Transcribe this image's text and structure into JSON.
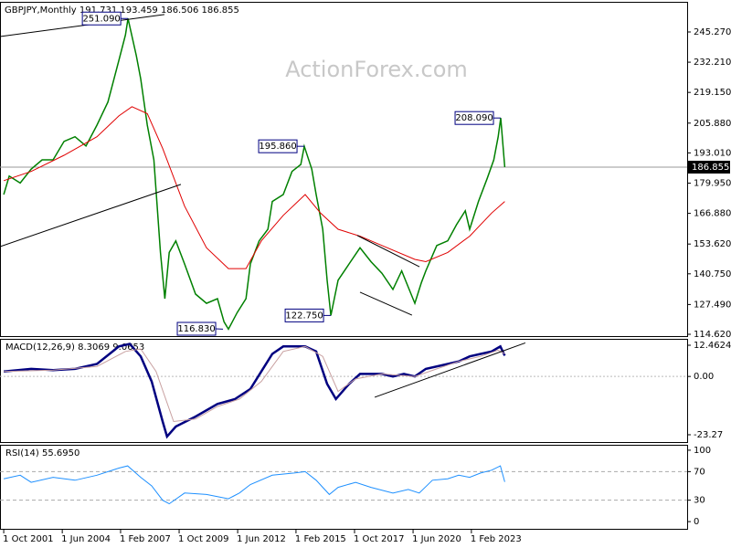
{
  "chart_data": [
    {
      "type": "line",
      "title": "GBPJPY,Monthly  191.731 193.459 186.506 186.855",
      "watermark": "ActionForex.com",
      "xlim": [
        2001.58,
        2032.92
      ],
      "xticks": [
        {
          "value": 2001.75,
          "label": "1 Oct 2001"
        },
        {
          "value": 2004.42,
          "label": "1 Jun 2004"
        },
        {
          "value": 2007.08,
          "label": "1 Feb 2007"
        },
        {
          "value": 2009.75,
          "label": "1 Oct 2009"
        },
        {
          "value": 2012.42,
          "label": "1 Jun 2012"
        },
        {
          "value": 2015.08,
          "label": "1 Feb 2015"
        },
        {
          "value": 2017.75,
          "label": "1 Oct 2017"
        },
        {
          "value": 2020.42,
          "label": "1 Jun 2020"
        },
        {
          "value": 2023.08,
          "label": "1 Feb 2023"
        }
      ],
      "ylim": [
        113.83,
        257.9
      ],
      "yticks": [
        {
          "value": 245.27,
          "label": "245.270"
        },
        {
          "value": 232.21,
          "label": "232.210"
        },
        {
          "value": 219.15,
          "label": "219.150"
        },
        {
          "value": 205.88,
          "label": "205.880"
        },
        {
          "value": 193.01,
          "label": "193.010"
        },
        {
          "value": 179.95,
          "label": "179.950"
        },
        {
          "value": 166.88,
          "label": "166.880"
        },
        {
          "value": 153.62,
          "label": "153.620"
        },
        {
          "value": 140.75,
          "label": "140.750"
        },
        {
          "value": 127.49,
          "label": "127.490"
        },
        {
          "value": 114.62,
          "label": "114.620"
        }
      ],
      "series": [
        {
          "color": "#008000",
          "width": 1.5,
          "x": [
            2001.75,
            2002.0,
            2002.5,
            2003.0,
            2003.5,
            2004.0,
            2004.5,
            2005.0,
            2005.5,
            2006.0,
            2006.5,
            2007.0,
            2007.3,
            2007.42,
            2007.8,
            2008.0,
            2008.3,
            2008.6,
            2008.9,
            2009.1,
            2009.3,
            2009.6,
            2010.0,
            2010.5,
            2011.0,
            2011.5,
            2011.8,
            2012.0,
            2012.4,
            2012.8,
            2013.0,
            2013.4,
            2013.8,
            2014.0,
            2014.5,
            2014.9,
            2015.3,
            2015.46,
            2015.8,
            2016.0,
            2016.3,
            2016.5,
            2016.67,
            2017.0,
            2017.5,
            2018.0,
            2018.5,
            2019.0,
            2019.5,
            2019.9,
            2020.2,
            2020.5,
            2020.8,
            2021.0,
            2021.5,
            2022.0,
            2022.4,
            2022.8,
            2023.0,
            2023.4,
            2023.8,
            2024.1,
            2024.3,
            2024.42,
            2024.6
          ],
          "values": [
            175,
            183,
            180,
            186,
            190,
            190,
            198,
            200,
            196,
            205,
            215,
            233,
            244,
            251.09,
            235,
            225,
            205,
            190,
            150,
            130,
            150,
            155,
            145,
            132,
            128,
            130,
            120,
            116.83,
            124,
            130,
            145,
            155,
            160,
            172,
            175,
            185,
            188,
            195.86,
            186,
            175,
            160,
            138,
            122.75,
            138,
            145,
            152,
            146,
            141,
            134,
            142,
            135,
            128,
            137,
            142,
            153,
            155,
            162,
            168,
            160,
            172,
            182,
            190,
            200,
            208.09,
            186.855
          ]
        },
        {
          "color": "#e00000",
          "width": 1,
          "x": [
            2001.75,
            2003.0,
            2004.5,
            2006.0,
            2007.0,
            2007.6,
            2008.3,
            2009.0,
            2010.0,
            2011.0,
            2012.0,
            2012.8,
            2013.5,
            2014.5,
            2015.5,
            2016.2,
            2017.0,
            2018.0,
            2019.0,
            2020.5,
            2021.0,
            2022.0,
            2023.0,
            2024.0,
            2024.6
          ],
          "values": [
            181,
            185,
            192,
            200,
            209,
            213,
            210,
            195,
            170,
            152,
            143,
            143,
            155,
            166,
            175,
            167,
            160,
            157,
            153,
            147,
            146,
            150,
            157,
            167,
            172
          ]
        }
      ],
      "trendlines": [
        {
          "x": [
            2001.58,
            2009.08
          ],
          "y": [
            243.3,
            252.8
          ]
        },
        {
          "x": [
            2001.58,
            2009.83
          ],
          "y": [
            152.5,
            179.4
          ]
        },
        {
          "x": [
            2017.88,
            2020.71
          ],
          "y": [
            157.3,
            143.8
          ]
        },
        {
          "x": [
            2018.0,
            2020.37
          ],
          "y": [
            132.8,
            122.9
          ]
        }
      ],
      "annotations": [
        {
          "x": 2007.42,
          "value": 251.09,
          "label": "251.090"
        },
        {
          "x": 2011.75,
          "value": 116.83,
          "label": "116.830"
        },
        {
          "x": 2015.46,
          "value": 195.86,
          "label": "195.860"
        },
        {
          "x": 2016.67,
          "value": 122.75,
          "label": "122.750"
        },
        {
          "x": 2024.42,
          "value": 208.09,
          "label": "208.090"
        }
      ],
      "last_price": {
        "value": 186.855,
        "label": "186.855"
      }
    },
    {
      "type": "line",
      "title": "MACD(12,26,9) 8.3069 9.0653",
      "ylim": [
        -26.19,
        14.65
      ],
      "yticks": [
        12.4624,
        {
          "value": 0,
          "label": "0.00"
        },
        -23.27
      ],
      "series": [
        {
          "color": "#000080",
          "width": 2.5,
          "x": [
            2001.75,
            2003.0,
            2004.0,
            2005.0,
            2006.0,
            2007.0,
            2007.5,
            2008.0,
            2008.5,
            2009.0,
            2009.2,
            2009.6,
            2010.5,
            2011.5,
            2012.3,
            2013.0,
            2013.5,
            2014.0,
            2014.5,
            2015.5,
            2016.0,
            2016.5,
            2016.9,
            2017.5,
            2018.0,
            2019.0,
            2019.5,
            2020.0,
            2020.5,
            2021.0,
            2022.0,
            2022.5,
            2023.0,
            2023.5,
            2024.0,
            2024.4,
            2024.6
          ],
          "values": [
            2,
            3,
            2.5,
            3,
            5,
            12,
            13,
            8,
            -2,
            -18,
            -24,
            -20,
            -16,
            -11,
            -9,
            -5,
            2,
            9,
            12,
            12,
            10,
            -3,
            -9,
            -3,
            1,
            1,
            0,
            1,
            0,
            3,
            5,
            6,
            8,
            9,
            10,
            12,
            8.3069
          ]
        },
        {
          "color": "#c8a0a0",
          "width": 1,
          "x": [
            2001.75,
            2004.0,
            2006.0,
            2007.3,
            2008.0,
            2008.7,
            2009.5,
            2010.5,
            2011.5,
            2012.5,
            2013.5,
            2014.5,
            2015.5,
            2016.3,
            2017.0,
            2017.8,
            2019.0,
            2020.5,
            2021.5,
            2022.5,
            2023.5,
            2024.3,
            2024.6
          ],
          "values": [
            2,
            2.5,
            4,
            10,
            11,
            2,
            -18,
            -17,
            -12,
            -9,
            -2,
            10,
            12,
            8,
            -6,
            -1,
            1,
            0,
            3,
            6,
            8,
            10.5,
            9.0653
          ]
        }
      ],
      "trendlines": [
        {
          "x": [
            2018.67,
            2025.54
          ],
          "y": [
            -8.3,
            13.4
          ]
        }
      ]
    },
    {
      "type": "line",
      "title": "RSI(14) 55.6950",
      "ylim": [
        -10.1,
        106.3
      ],
      "yticks": [
        100,
        70,
        30,
        0
      ],
      "levels": [
        70,
        30
      ],
      "series": [
        {
          "color": "#1e90ff",
          "width": 1,
          "x": [
            2001.75,
            2002.5,
            2003.0,
            2004.0,
            2005.0,
            2006.0,
            2007.0,
            2007.4,
            2008.0,
            2008.5,
            2009.0,
            2009.3,
            2010.0,
            2011.0,
            2012.0,
            2012.5,
            2013.0,
            2014.0,
            2015.0,
            2015.5,
            2016.0,
            2016.6,
            2017.0,
            2017.8,
            2018.5,
            2019.5,
            2020.2,
            2020.7,
            2021.3,
            2022.0,
            2022.5,
            2023.0,
            2023.5,
            2024.0,
            2024.4,
            2024.6
          ],
          "values": [
            60,
            65,
            55,
            62,
            58,
            65,
            75,
            78,
            62,
            50,
            30,
            25,
            40,
            38,
            32,
            40,
            52,
            65,
            68,
            70,
            58,
            38,
            48,
            55,
            48,
            40,
            45,
            40,
            58,
            60,
            65,
            62,
            68,
            72,
            78,
            55.695
          ]
        }
      ]
    }
  ]
}
